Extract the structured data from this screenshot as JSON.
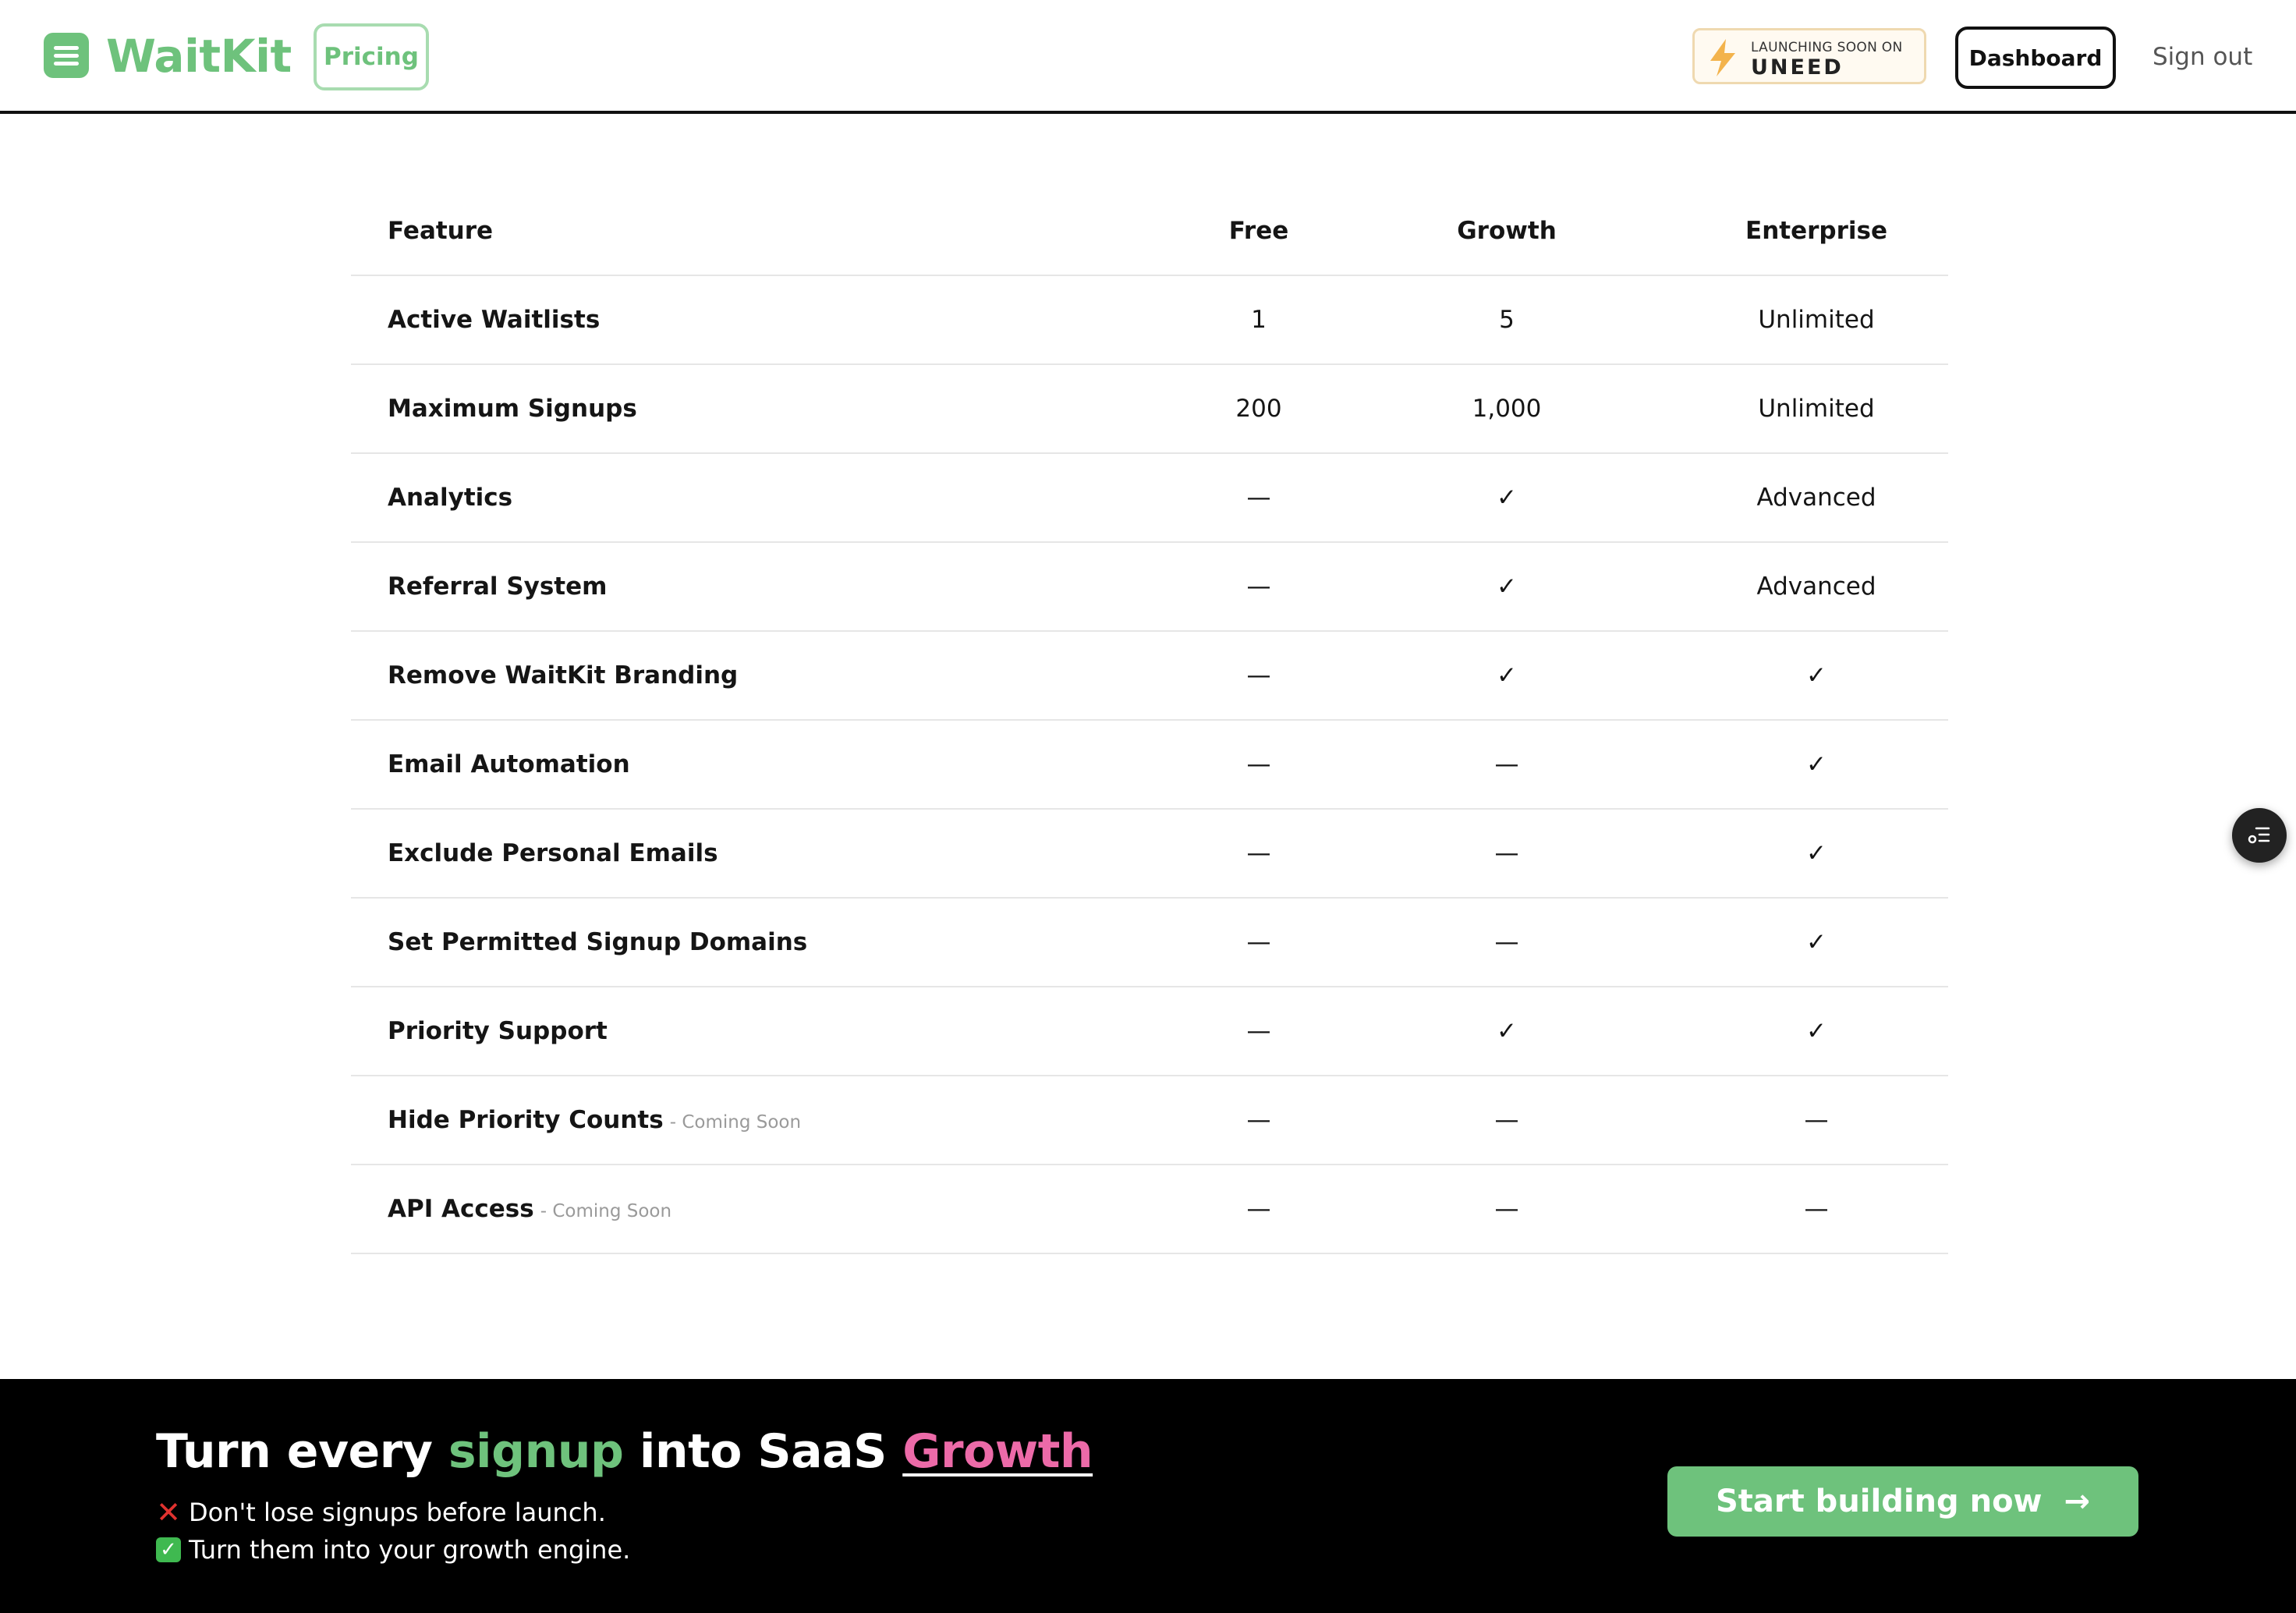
{
  "header": {
    "brand": "WaitKit",
    "nav_pricing": "Pricing",
    "launch_badge": {
      "sub": "LAUNCHING SOON ON",
      "name": "UNEED"
    },
    "dashboard_label": "Dashboard",
    "signout_label": "Sign out"
  },
  "table": {
    "headers": [
      "Feature",
      "Free",
      "Growth",
      "Enterprise"
    ],
    "rows": [
      {
        "feature": "Active Waitlists",
        "note": "",
        "free": "1",
        "growth": "5",
        "enterprise": "Unlimited"
      },
      {
        "feature": "Maximum Signups",
        "note": "",
        "free": "200",
        "growth": "1,000",
        "enterprise": "Unlimited"
      },
      {
        "feature": "Analytics",
        "note": "",
        "free": "—",
        "growth": "✓",
        "enterprise": "Advanced"
      },
      {
        "feature": "Referral System",
        "note": "",
        "free": "—",
        "growth": "✓",
        "enterprise": "Advanced"
      },
      {
        "feature": "Remove WaitKit Branding",
        "note": "",
        "free": "—",
        "growth": "✓",
        "enterprise": "✓"
      },
      {
        "feature": "Email Automation",
        "note": "",
        "free": "—",
        "growth": "—",
        "enterprise": "✓"
      },
      {
        "feature": "Exclude Personal Emails",
        "note": "",
        "free": "—",
        "growth": "—",
        "enterprise": "✓"
      },
      {
        "feature": "Set Permitted Signup Domains",
        "note": "",
        "free": "—",
        "growth": "—",
        "enterprise": "✓"
      },
      {
        "feature": "Priority Support",
        "note": "",
        "free": "—",
        "growth": "✓",
        "enterprise": "✓"
      },
      {
        "feature": "Hide Priority Counts",
        "note": "- Coming Soon",
        "free": "—",
        "growth": "—",
        "enterprise": "—"
      },
      {
        "feature": "API Access",
        "note": "- Coming Soon",
        "free": "—",
        "growth": "—",
        "enterprise": "—"
      }
    ]
  },
  "floating_button": {
    "icon": "list-settings-icon"
  },
  "cta": {
    "title_part1": "Turn every ",
    "title_highlight1": "signup",
    "title_part2": " into SaaS ",
    "title_highlight2": "Growth",
    "line1": "Don't lose signups before launch.",
    "line2": "Turn them into your growth engine.",
    "button_label": "Start building now",
    "button_arrow": "→"
  },
  "colors": {
    "brand_green": "#6ec27c",
    "accent_pink": "#ec6aa8",
    "footer_bg": "#000000"
  }
}
